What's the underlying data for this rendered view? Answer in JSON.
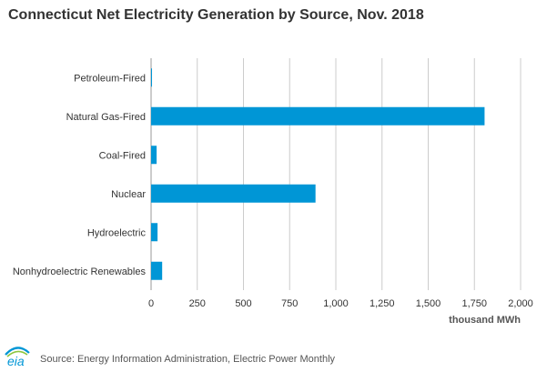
{
  "title": "Connecticut Net Electricity Generation by Source, Nov. 2018",
  "source": "Source: Energy Information Administration, Electric Power Monthly",
  "logo_text": "eia",
  "colors": {
    "bar": "#0096d6",
    "grid": "#cccccc",
    "logo_blue": "#0096d6",
    "logo_green": "#8dc63f"
  },
  "chart_data": {
    "type": "bar",
    "orientation": "horizontal",
    "categories": [
      "Petroleum-Fired",
      "Natural Gas-Fired",
      "Coal-Fired",
      "Nuclear",
      "Hydroelectric",
      "Nonhydroelectric Renewables"
    ],
    "values": [
      5,
      1805,
      30,
      890,
      35,
      60
    ],
    "xlabel": "thousand MWh",
    "xlim": [
      0,
      2000
    ],
    "xticks": [
      0,
      250,
      500,
      750,
      1000,
      1250,
      1500,
      1750,
      2000
    ],
    "xtick_labels": [
      "0",
      "250",
      "500",
      "750",
      "1,000",
      "1,250",
      "1,500",
      "1,750",
      "2,000"
    ],
    "grid": "vertical",
    "legend": "none"
  }
}
